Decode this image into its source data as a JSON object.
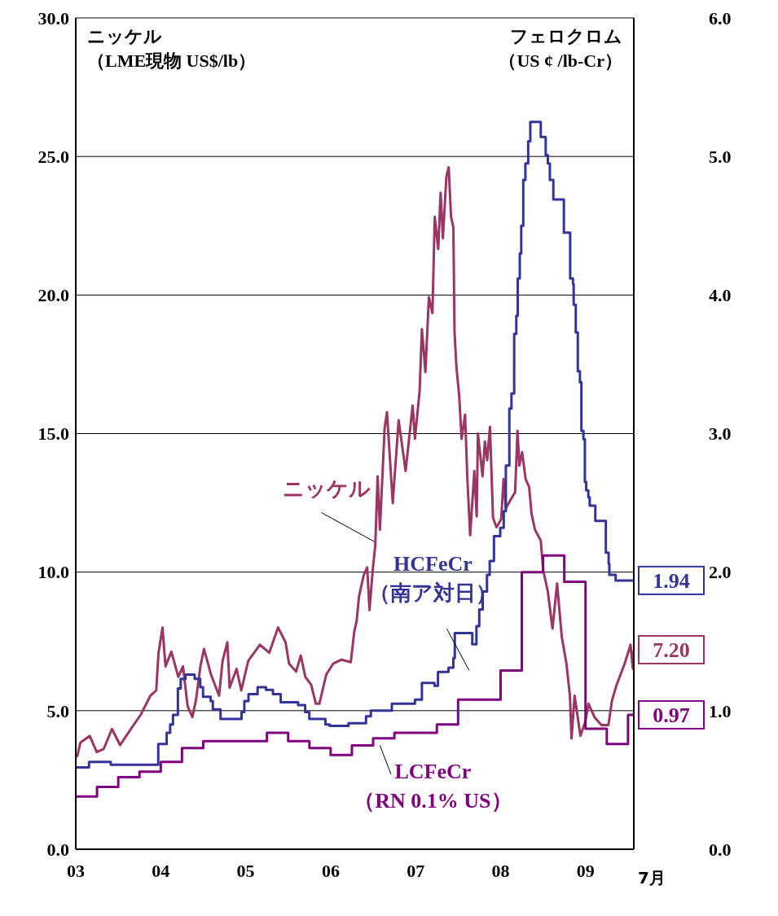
{
  "chart_data": {
    "type": "line",
    "ylabel": "ニッケル（LME現物 US$/lb）",
    "y2label": "フェロクロム（US ¢ /lb-Cr）",
    "annotations": [
      "7月"
    ],
    "xlim": [
      2003,
      2009.568
    ],
    "xticks": [
      {
        "value": 2003,
        "label": "03"
      },
      {
        "value": 2004,
        "label": "04"
      },
      {
        "value": 2005,
        "label": "05"
      },
      {
        "value": 2006,
        "label": "06"
      },
      {
        "value": 2007,
        "label": "07"
      },
      {
        "value": 2008,
        "label": "08"
      },
      {
        "value": 2009,
        "label": "09"
      }
    ],
    "ylim": [
      0,
      30
    ],
    "yticks": [
      {
        "value": 0,
        "label": "0.0"
      },
      {
        "value": 5,
        "label": "5.0"
      },
      {
        "value": 10,
        "label": "10.0"
      },
      {
        "value": 15,
        "label": "15.0"
      },
      {
        "value": 20,
        "label": "20.0"
      },
      {
        "value": 25,
        "label": "25.0"
      },
      {
        "value": 30,
        "label": "30.0"
      }
    ],
    "y2lim": [
      0,
      6
    ],
    "y2ticks": [
      {
        "value": 0,
        "label": "0.0"
      },
      {
        "value": 1,
        "label": "1.0"
      },
      {
        "value": 2,
        "label": "2.0"
      },
      {
        "value": 3,
        "label": "3.0"
      },
      {
        "value": 4,
        "label": "4.0"
      },
      {
        "value": 5,
        "label": "5.0"
      },
      {
        "value": 6,
        "label": "6.0"
      }
    ],
    "grid": "y",
    "series": [
      {
        "name": "ニッケル",
        "color": "#9b3563",
        "x": [
          2003.014,
          2003.055,
          2003.165,
          2003.247,
          2003.329,
          2003.426,
          2003.521,
          2003.658,
          2003.768,
          2003.878,
          2003.947,
          2003.974,
          2004.021,
          2004.056,
          2004.125,
          2004.207,
          2004.262,
          2004.317,
          2004.372,
          2004.413,
          2004.467,
          2004.509,
          2004.591,
          2004.687,
          2004.728,
          2004.784,
          2004.811,
          2004.893,
          2004.948,
          2005.03,
          2005.167,
          2005.277,
          2005.381,
          2005.469,
          2005.51,
          2005.593,
          2005.648,
          2005.702,
          2005.771,
          2005.826,
          2005.867,
          2005.949,
          2006.031,
          2006.128,
          2006.237,
          2006.278,
          2006.306,
          2006.333,
          2006.388,
          2006.43,
          2006.457,
          2006.498,
          2006.525,
          2006.553,
          2006.58,
          2006.635,
          2006.663,
          2006.731,
          2006.8,
          2006.882,
          2006.965,
          2006.992,
          2007.047,
          2007.074,
          2007.115,
          2007.156,
          2007.198,
          2007.225,
          2007.266,
          2007.294,
          2007.321,
          2007.362,
          2007.389,
          2007.417,
          2007.444,
          2007.458,
          2007.48,
          2007.513,
          2007.541,
          2007.582,
          2007.609,
          2007.642,
          2007.691,
          2007.719,
          2007.733,
          2007.788,
          2007.815,
          2007.842,
          2007.875,
          2007.911,
          2007.952,
          2008.007,
          2008.035,
          2008.062,
          2008.13,
          2008.171,
          2008.199,
          2008.221,
          2008.253,
          2008.295,
          2008.336,
          2008.364,
          2008.405,
          2008.473,
          2008.501,
          2008.556,
          2008.611,
          2008.665,
          2008.72,
          2008.775,
          2008.816,
          2008.835,
          2008.871,
          2008.94,
          2008.994,
          2009.035,
          2009.105,
          2009.187,
          2009.269,
          2009.31,
          2009.365,
          2009.461,
          2009.529,
          2009.557,
          2009.568
        ],
        "values": [
          3.32,
          3.85,
          4.09,
          3.51,
          3.62,
          4.34,
          3.76,
          4.38,
          4.87,
          5.54,
          5.73,
          7.09,
          8.0,
          6.6,
          7.13,
          6.22,
          6.6,
          5.15,
          4.77,
          5.35,
          6.6,
          7.23,
          6.31,
          5.54,
          6.8,
          7.47,
          5.83,
          6.51,
          5.73,
          6.8,
          7.38,
          7.09,
          8.0,
          7.47,
          6.7,
          6.41,
          6.99,
          6.22,
          5.93,
          5.25,
          5.25,
          6.31,
          6.7,
          6.84,
          6.75,
          7.86,
          8.24,
          9.11,
          9.88,
          10.17,
          8.63,
          10.17,
          10.95,
          13.46,
          11.53,
          15.19,
          15.77,
          12.49,
          15.48,
          13.65,
          16.01,
          14.81,
          16.54,
          18.77,
          17.22,
          19.92,
          19.35,
          22.82,
          21.66,
          23.69,
          22.05,
          24.27,
          24.61,
          22.82,
          22.44,
          18.67,
          17.41,
          16.35,
          14.81,
          15.68,
          13.36,
          11.33,
          13.65,
          12.01,
          15.0,
          13.46,
          14.71,
          14.04,
          15.24,
          11.96,
          11.62,
          11.91,
          13.36,
          12.3,
          12.68,
          12.88,
          15.1,
          13.84,
          14.33,
          13.36,
          13.07,
          12.11,
          11.53,
          11.14,
          10.08,
          9.3,
          7.96,
          9.59,
          7.67,
          6.7,
          5.54,
          4.0,
          5.54,
          4.09,
          4.58,
          5.25,
          4.77,
          4.48,
          4.48,
          5.35,
          5.93,
          6.7,
          7.38,
          6.51,
          7.2
        ],
        "value_labels": [
          null,
          null,
          null,
          null,
          null,
          null,
          null,
          null,
          null,
          null,
          null,
          null,
          null,
          null,
          null,
          null,
          null,
          null,
          null,
          null,
          null,
          null,
          null,
          null,
          null,
          null,
          null,
          null,
          null,
          null,
          null,
          null,
          null,
          null,
          null,
          null,
          null,
          null,
          null,
          null,
          null,
          null,
          null,
          null,
          null,
          null,
          null,
          null,
          null,
          null,
          null,
          null,
          null,
          null,
          null,
          null,
          null,
          null,
          null,
          null,
          null,
          null,
          null,
          null,
          null,
          null,
          null,
          null,
          null,
          null,
          null,
          null,
          null,
          null,
          null,
          null,
          null,
          null,
          null,
          null,
          null,
          null,
          null,
          null,
          null,
          null,
          null,
          null,
          null,
          null,
          null,
          null,
          null,
          null,
          null,
          null,
          null,
          null,
          null,
          null,
          null,
          null,
          null,
          null,
          null,
          null,
          null,
          null,
          null,
          null,
          null,
          null,
          null,
          null,
          null,
          null,
          null,
          null,
          null,
          null,
          null,
          null,
          null,
          null,
          "7.20"
        ]
      },
      {
        "name": "HCFeCr\n（南ア対日）",
        "type": "step",
        "axis": "y2",
        "color": "#333399",
        "x": [
          2003.0,
          2003.156,
          2003.412,
          2003.947,
          2003.971,
          2004.07,
          2004.111,
          2004.144,
          2004.202,
          2004.235,
          2004.292,
          2004.399,
          2004.465,
          2004.498,
          2004.588,
          2004.613,
          2004.704,
          2004.951,
          2004.984,
          2005.033,
          2005.14,
          2005.239,
          2005.321,
          2005.412,
          2005.617,
          2005.7,
          2005.749,
          2005.938,
          2005.988,
          2006.21,
          2006.416,
          2006.473,
          2006.72,
          2006.992,
          2007.074,
          2007.222,
          2007.263,
          2007.387,
          2007.444,
          2007.461,
          2007.667,
          2007.716,
          2007.749,
          2007.79,
          2007.84,
          2007.872,
          2007.922,
          2007.996,
          2008.037,
          2008.062,
          2008.103,
          2008.128,
          2008.16,
          2008.185,
          2008.202,
          2008.226,
          2008.243,
          2008.267,
          2008.292,
          2008.325,
          2008.35,
          2008.449,
          2008.473,
          2008.531,
          2008.556,
          2008.58,
          2008.621,
          2008.745,
          2008.819,
          2008.852,
          2008.86,
          2008.885,
          2008.909,
          2008.934,
          2008.951,
          2008.975,
          2008.992,
          2009.008,
          2009.033,
          2009.049,
          2009.115,
          2009.239,
          2009.272,
          2009.28,
          2009.354,
          2009.568
        ],
        "values": [
          0.59,
          0.63,
          0.61,
          0.61,
          0.76,
          0.84,
          0.9,
          0.97,
          1.16,
          1.23,
          1.26,
          1.23,
          1.17,
          1.1,
          1.07,
          1.01,
          0.94,
          0.99,
          1.07,
          1.12,
          1.17,
          1.15,
          1.12,
          1.06,
          1.04,
          0.99,
          0.94,
          0.9,
          0.89,
          0.91,
          0.96,
          1.0,
          1.05,
          1.08,
          1.2,
          1.18,
          1.28,
          1.31,
          1.38,
          1.56,
          1.48,
          1.61,
          1.73,
          1.86,
          1.98,
          2.08,
          2.26,
          2.32,
          2.44,
          2.77,
          3.18,
          3.29,
          3.72,
          3.85,
          4.12,
          4.3,
          4.5,
          4.83,
          4.95,
          5.11,
          5.25,
          5.25,
          5.14,
          5.01,
          4.95,
          4.83,
          4.69,
          4.45,
          4.12,
          4.08,
          3.93,
          3.73,
          3.45,
          3.37,
          3.02,
          2.96,
          2.65,
          2.59,
          2.54,
          2.48,
          2.37,
          2.14,
          2.06,
          1.98,
          1.94,
          1.94
        ],
        "value_labels": [
          null,
          null,
          null,
          null,
          null,
          null,
          null,
          null,
          null,
          null,
          null,
          null,
          null,
          null,
          null,
          null,
          null,
          null,
          null,
          null,
          null,
          null,
          null,
          null,
          null,
          null,
          null,
          null,
          null,
          null,
          null,
          null,
          null,
          null,
          null,
          null,
          null,
          null,
          null,
          null,
          null,
          null,
          null,
          null,
          null,
          null,
          null,
          null,
          null,
          null,
          null,
          null,
          null,
          null,
          null,
          null,
          null,
          null,
          null,
          null,
          null,
          null,
          null,
          null,
          null,
          null,
          null,
          null,
          null,
          null,
          null,
          null,
          null,
          null,
          null,
          null,
          null,
          null,
          null,
          null,
          null,
          null,
          null,
          null,
          null,
          "1.94"
        ]
      },
      {
        "name": "LCFeCr\n（RN 0.1% US）",
        "type": "step",
        "axis": "y2",
        "color": "#800080",
        "x": [
          2003.0,
          2003.25,
          2003.5,
          2003.75,
          2004.0,
          2004.25,
          2004.5,
          2005.25,
          2005.5,
          2005.75,
          2006.0,
          2006.25,
          2006.5,
          2006.75,
          2007.25,
          2007.5,
          2008.0,
          2008.25,
          2008.5,
          2008.75,
          2009.0,
          2009.25,
          2009.5,
          2009.568
        ],
        "values": [
          0.38,
          0.45,
          0.52,
          0.56,
          0.63,
          0.73,
          0.78,
          0.84,
          0.78,
          0.73,
          0.68,
          0.75,
          0.8,
          0.84,
          0.9,
          1.08,
          1.29,
          2.0,
          2.12,
          1.93,
          0.87,
          0.76,
          0.97,
          0.97
        ],
        "value_labels": [
          null,
          null,
          null,
          null,
          null,
          null,
          null,
          null,
          null,
          null,
          null,
          null,
          null,
          null,
          null,
          null,
          null,
          null,
          null,
          null,
          null,
          null,
          null,
          "0.97"
        ]
      }
    ]
  }
}
